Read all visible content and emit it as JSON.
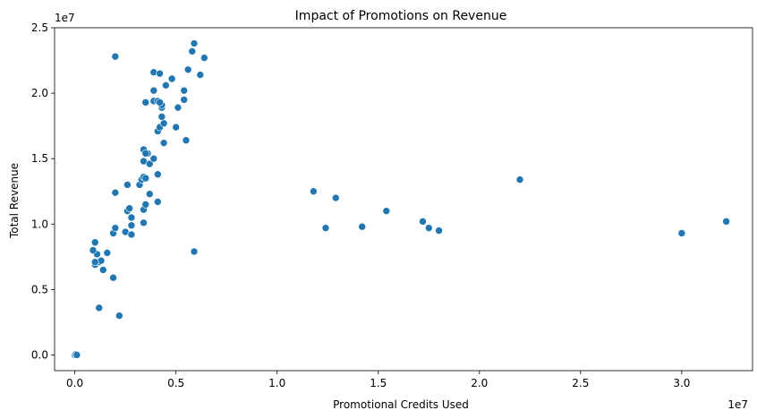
{
  "chart_data": {
    "type": "scatter",
    "title": "Impact of Promotions on Revenue",
    "xlabel": "Promotional Credits Used",
    "ylabel": "Total Revenue",
    "x_offset_label": "1e7",
    "y_offset_label": "1e7",
    "xlim": [
      -1.0,
      33.5
    ],
    "ylim": [
      -1.2,
      25.0
    ],
    "x_unit_scale": "1e7",
    "y_unit_scale": "1e7",
    "xticks": [
      0.0,
      0.5,
      1.0,
      1.5,
      2.0,
      2.5,
      3.0
    ],
    "xtick_labels": [
      "0.0",
      "0.5",
      "1.0",
      "1.5",
      "2.0",
      "2.5",
      "3.0"
    ],
    "yticks": [
      0.0,
      0.5,
      1.0,
      1.5,
      2.0,
      2.5
    ],
    "ytick_labels": [
      "0.0",
      "0.5",
      "1.0",
      "1.5",
      "2.0",
      "2.5"
    ],
    "grid": false,
    "marker_color": "#1f77b4",
    "points_unit": "x and y in units of 1e6",
    "points": [
      [
        0.0,
        0.0
      ],
      [
        0.05,
        0.05
      ],
      [
        0.1,
        0.0
      ],
      [
        1.2,
        3.6
      ],
      [
        2.2,
        3.0
      ],
      [
        1.9,
        5.9
      ],
      [
        1.4,
        6.5
      ],
      [
        1.0,
        6.9
      ],
      [
        1.2,
        7.1
      ],
      [
        1.3,
        7.2
      ],
      [
        1.0,
        7.1
      ],
      [
        1.1,
        7.7
      ],
      [
        0.9,
        8.0
      ],
      [
        1.6,
        7.8
      ],
      [
        1.0,
        8.6
      ],
      [
        5.9,
        7.9
      ],
      [
        1.9,
        9.3
      ],
      [
        2.5,
        9.4
      ],
      [
        2.8,
        9.2
      ],
      [
        2.0,
        9.7
      ],
      [
        2.8,
        9.9
      ],
      [
        3.4,
        10.1
      ],
      [
        2.8,
        10.5
      ],
      [
        2.6,
        11.0
      ],
      [
        2.7,
        11.2
      ],
      [
        3.4,
        11.1
      ],
      [
        3.5,
        11.5
      ],
      [
        4.1,
        11.7
      ],
      [
        3.7,
        12.3
      ],
      [
        2.0,
        12.4
      ],
      [
        2.6,
        13.0
      ],
      [
        3.2,
        13.0
      ],
      [
        3.3,
        13.4
      ],
      [
        3.4,
        13.6
      ],
      [
        3.5,
        13.5
      ],
      [
        4.1,
        13.8
      ],
      [
        3.4,
        14.8
      ],
      [
        3.7,
        14.6
      ],
      [
        3.9,
        15.0
      ],
      [
        3.6,
        15.4
      ],
      [
        3.4,
        15.7
      ],
      [
        3.5,
        15.4
      ],
      [
        4.4,
        16.2
      ],
      [
        5.5,
        16.4
      ],
      [
        4.1,
        17.1
      ],
      [
        4.2,
        17.4
      ],
      [
        4.4,
        17.7
      ],
      [
        5.0,
        17.4
      ],
      [
        4.3,
        18.2
      ],
      [
        4.3,
        18.9
      ],
      [
        5.1,
        18.9
      ],
      [
        4.3,
        19.1
      ],
      [
        3.5,
        19.3
      ],
      [
        3.9,
        19.4
      ],
      [
        4.1,
        19.4
      ],
      [
        4.2,
        19.3
      ],
      [
        5.4,
        19.5
      ],
      [
        3.9,
        20.2
      ],
      [
        5.4,
        20.2
      ],
      [
        4.5,
        20.6
      ],
      [
        4.8,
        21.1
      ],
      [
        3.9,
        21.6
      ],
      [
        4.2,
        21.5
      ],
      [
        5.6,
        21.8
      ],
      [
        6.2,
        21.4
      ],
      [
        5.8,
        23.2
      ],
      [
        6.4,
        22.7
      ],
      [
        5.9,
        23.8
      ],
      [
        2.0,
        22.8
      ],
      [
        11.8,
        12.5
      ],
      [
        12.9,
        12.0
      ],
      [
        12.4,
        9.7
      ],
      [
        14.2,
        9.8
      ],
      [
        15.4,
        11.0
      ],
      [
        17.2,
        10.2
      ],
      [
        17.5,
        9.7
      ],
      [
        18.0,
        9.5
      ],
      [
        22.0,
        13.4
      ],
      [
        30.0,
        9.3
      ],
      [
        32.2,
        10.2
      ]
    ]
  }
}
